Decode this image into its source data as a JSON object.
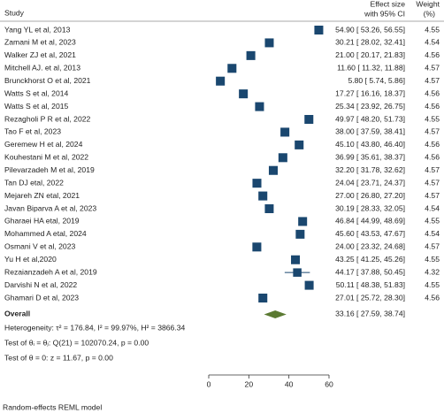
{
  "chart_data": {
    "type": "forest",
    "header": {
      "study": "Study",
      "effect": [
        "Effect size",
        "with 95% CI"
      ],
      "weight": [
        "Weight",
        "(%)"
      ]
    },
    "categories": [
      "Yang YL et al, 2013",
      "Zamani M et al, 2023",
      "Walker ZJ et al, 2021",
      "Mitchell AJ. et al, 2013",
      "Brunckhorst O et al, 2021",
      "Watts S et al, 2014",
      "Watts S et al, 2015",
      "Rezagholi P R et al, 2022",
      "Tao F et al, 2023",
      "Geremew H et al, 2024",
      "Kouhestani M et al, 2022",
      "Pilevarzadeh M et al, 2019",
      "Tan DJ etal, 2022",
      "Mejareh ZN etal, 2021",
      "Javan Biparva A et al, 2023",
      "Gharaei HA etal, 2019",
      "Mohammed A etal, 2024",
      "Osmani V et al, 2023",
      "Yu H et al,2020",
      "Rezaianzadeh A et al, 2019",
      "Darvishi N et al, 2022",
      "Ghamari D et al, 2023"
    ],
    "values": [
      54.9,
      30.21,
      21.0,
      11.6,
      5.8,
      17.27,
      25.34,
      49.97,
      38.0,
      45.1,
      36.99,
      32.2,
      24.04,
      27.0,
      30.19,
      46.84,
      45.6,
      24.0,
      43.25,
      44.17,
      50.11,
      27.01
    ],
    "lower": [
      53.26,
      28.02,
      20.17,
      11.32,
      5.74,
      16.16,
      23.92,
      48.2,
      37.59,
      43.8,
      35.61,
      31.78,
      23.71,
      26.8,
      28.33,
      44.99,
      43.53,
      23.32,
      41.25,
      37.88,
      48.38,
      25.72
    ],
    "upper": [
      56.55,
      32.41,
      21.83,
      11.88,
      5.86,
      18.37,
      26.75,
      51.73,
      38.41,
      46.4,
      38.37,
      32.62,
      24.37,
      27.2,
      32.05,
      48.69,
      47.67,
      24.68,
      45.26,
      50.45,
      51.83,
      28.3
    ],
    "value_labels": [
      "54.90 [ 53.26, 56.55]",
      "30.21 [ 28.02, 32.41]",
      "21.00 [ 20.17, 21.83]",
      "11.60 [ 11.32, 11.88]",
      "5.80 [ 5.74, 5.86]",
      "17.27 [ 16.16, 18.37]",
      "25.34 [ 23.92, 26.75]",
      "49.97 [ 48.20, 51.73]",
      "38.00 [ 37.59, 38.41]",
      "45.10 [ 43.80, 46.40]",
      "36.99 [ 35.61, 38.37]",
      "32.20 [ 31.78, 32.62]",
      "24.04 [ 23.71, 24.37]",
      "27.00 [ 26.80, 27.20]",
      "30.19 [ 28.33, 32.05]",
      "46.84 [ 44.99, 48.69]",
      "45.60 [ 43.53, 47.67]",
      "24.00 [ 23.32, 24.68]",
      "43.25 [ 41.25, 45.26]",
      "44.17 [ 37.88, 50.45]",
      "50.11 [ 48.38, 51.83]",
      "27.01 [ 25.72, 28.30]"
    ],
    "weights": [
      4.55,
      4.54,
      4.56,
      4.57,
      4.57,
      4.56,
      4.56,
      4.55,
      4.57,
      4.56,
      4.56,
      4.57,
      4.57,
      4.57,
      4.54,
      4.55,
      4.54,
      4.57,
      4.55,
      4.32,
      4.55,
      4.56
    ],
    "overall": {
      "label": "Overall",
      "value": 33.16,
      "lower": 27.59,
      "upper": 38.74,
      "value_label": "33.16 [ 27.59, 38.74]"
    },
    "notes": [
      "Heterogeneity: τ² = 176.84, I² = 99.97%, H² = 3866.34",
      "Test of θᵢ = θⱼ: Q(21) = 102070.24, p = 0.00",
      "Test of θ = 0: z = 11.67, p = 0.00"
    ],
    "footer": "Random-effects REML model",
    "xlim": [
      0,
      60
    ],
    "xticks": [
      0,
      20,
      40,
      60
    ],
    "color": "#1a476f",
    "overall_color": "#5b7a32"
  }
}
